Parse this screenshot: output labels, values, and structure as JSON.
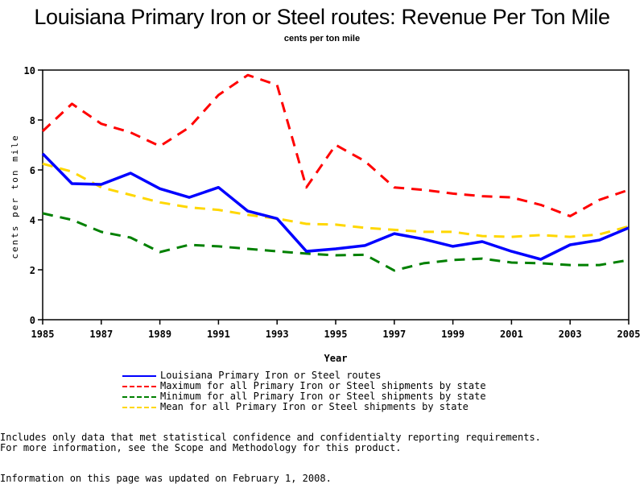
{
  "chart_data": {
    "type": "line",
    "title": "Louisiana Primary Iron or Steel routes: Revenue Per Ton Mile",
    "subtitle": "cents per ton mile",
    "xlabel": "Year",
    "ylabel": "cents per ton mile",
    "xlim": [
      1985,
      2005
    ],
    "ylim": [
      0,
      10
    ],
    "x_ticks": [
      1985,
      1987,
      1989,
      1991,
      1993,
      1995,
      1997,
      1999,
      2001,
      2003,
      2005
    ],
    "y_ticks": [
      0,
      2,
      4,
      6,
      8,
      10
    ],
    "grid": false,
    "legend_position": "bottom",
    "x": [
      1985,
      1986,
      1987,
      1988,
      1989,
      1990,
      1991,
      1992,
      1993,
      1994,
      1995,
      1996,
      1997,
      1998,
      1999,
      2000,
      2001,
      2002,
      2003,
      2004,
      2005
    ],
    "series": [
      {
        "name": "Louisiana Primary Iron or Steel routes",
        "color": "#0000ff",
        "style": "solid",
        "values": [
          6.65,
          5.45,
          5.42,
          5.87,
          5.25,
          4.9,
          5.3,
          4.35,
          4.05,
          2.74,
          2.84,
          2.97,
          3.45,
          3.23,
          2.94,
          3.13,
          2.74,
          2.42,
          3.0,
          3.19,
          3.68
        ]
      },
      {
        "name": "Maximum for all Primary Iron or Steel shipments by state",
        "color": "#ff0000",
        "style": "dashed",
        "values": [
          7.55,
          8.65,
          7.85,
          7.5,
          6.95,
          7.7,
          9.0,
          9.8,
          9.4,
          5.3,
          7.0,
          6.35,
          5.3,
          5.2,
          5.05,
          4.95,
          4.9,
          4.6,
          4.15,
          4.8,
          5.2
        ]
      },
      {
        "name": "Minimum for all Primary Iron or Steel shipments by state",
        "color": "#008000",
        "style": "dashed",
        "values": [
          4.26,
          4.0,
          3.52,
          3.29,
          2.71,
          3.0,
          2.94,
          2.84,
          2.74,
          2.65,
          2.58,
          2.6,
          1.97,
          2.26,
          2.39,
          2.45,
          2.29,
          2.26,
          2.19,
          2.19,
          2.39
        ]
      },
      {
        "name": "Mean for all Primary Iron or Steel shipments by state",
        "color": "#ffd700",
        "style": "dashed",
        "values": [
          6.25,
          5.93,
          5.3,
          5.0,
          4.7,
          4.5,
          4.4,
          4.2,
          4.05,
          3.84,
          3.81,
          3.68,
          3.6,
          3.52,
          3.52,
          3.35,
          3.32,
          3.39,
          3.32,
          3.42,
          3.74
        ]
      }
    ]
  },
  "footer": {
    "note_line1": "Includes only data that met statistical confidence and confidentialty reporting requirements.",
    "note_line2": "For more information, see the Scope and Methodology for this product.",
    "updated": "Information on this page was updated on February 1, 2008."
  }
}
